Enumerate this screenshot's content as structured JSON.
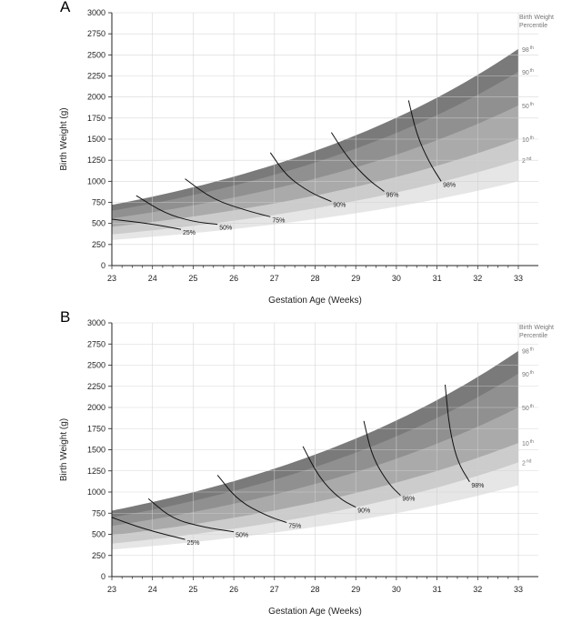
{
  "chart_data": [
    {
      "type": "area",
      "panel_label": "A",
      "xlabel": "Gestation Age (Weeks)",
      "ylabel": "Birth Weight (g)",
      "xlim": [
        23,
        33
      ],
      "ylim": [
        0,
        3000
      ],
      "xticks": [
        "23",
        "24",
        "25",
        "26",
        "27",
        "28",
        "29",
        "30",
        "31",
        "32",
        "33"
      ],
      "yticks": [
        "0",
        "250",
        "500",
        "750",
        "1000",
        "1250",
        "1500",
        "1750",
        "2000",
        "2250",
        "2500",
        "2750",
        "3000"
      ],
      "grid": true,
      "legend_title_1": "Birth Weight",
      "legend_title_2": "Percentile",
      "bands": [
        {
          "name": "98th",
          "num": "98",
          "suf": "th",
          "color": "#7a7a7a",
          "start": 720,
          "end": 2570
        },
        {
          "name": "90th",
          "num": "90",
          "suf": "th",
          "color": "#909090",
          "start": 650,
          "end": 2300
        },
        {
          "name": "50th",
          "num": "50",
          "suf": "th",
          "color": "#aaaaaa",
          "start": 560,
          "end": 1900
        },
        {
          "name": "10th",
          "num": "10",
          "suf": "th",
          "color": "#cccccc",
          "start": 460,
          "end": 1500
        },
        {
          "name": "2nd",
          "num": "2",
          "suf": "nd",
          "color": "#e6e6e6",
          "start": 370,
          "end": 1250
        }
      ],
      "survival_curves": [
        {
          "label": "25%",
          "points": [
            [
              23.0,
              550
            ],
            [
              23.9,
              500
            ],
            [
              24.7,
              430
            ]
          ]
        },
        {
          "label": "50%",
          "points": [
            [
              23.6,
              830
            ],
            [
              24.3,
              620
            ],
            [
              25.0,
              520
            ],
            [
              25.6,
              490
            ]
          ]
        },
        {
          "label": "75%",
          "points": [
            [
              24.8,
              1030
            ],
            [
              25.5,
              780
            ],
            [
              26.4,
              640
            ],
            [
              26.9,
              580
            ]
          ]
        },
        {
          "label": "90%",
          "points": [
            [
              26.9,
              1340
            ],
            [
              27.3,
              1060
            ],
            [
              27.9,
              860
            ],
            [
              28.4,
              760
            ]
          ]
        },
        {
          "label": "96%",
          "points": [
            [
              28.4,
              1580
            ],
            [
              28.8,
              1280
            ],
            [
              29.3,
              1020
            ],
            [
              29.7,
              880
            ]
          ]
        },
        {
          "label": "98%",
          "points": [
            [
              30.3,
              1960
            ],
            [
              30.5,
              1550
            ],
            [
              30.8,
              1230
            ],
            [
              31.1,
              1000
            ]
          ]
        }
      ]
    },
    {
      "type": "area",
      "panel_label": "B",
      "xlabel": "Gestation Age (Weeks)",
      "ylabel": "Birth Weight (g)",
      "xlim": [
        23,
        33
      ],
      "ylim": [
        0,
        3000
      ],
      "xticks": [
        "23",
        "24",
        "25",
        "26",
        "27",
        "28",
        "29",
        "30",
        "31",
        "32",
        "33"
      ],
      "yticks": [
        "0",
        "250",
        "500",
        "750",
        "1000",
        "1250",
        "1500",
        "1750",
        "2000",
        "2250",
        "2500",
        "2750",
        "3000"
      ],
      "grid": true,
      "legend_title_1": "Birth Weight",
      "legend_title_2": "Percentile",
      "bands": [
        {
          "name": "98th",
          "num": "98",
          "suf": "th",
          "color": "#7a7a7a",
          "start": 780,
          "end": 2670
        },
        {
          "name": "90th",
          "num": "90",
          "suf": "th",
          "color": "#909090",
          "start": 700,
          "end": 2400
        },
        {
          "name": "50th",
          "num": "50",
          "suf": "th",
          "color": "#aaaaaa",
          "start": 600,
          "end": 2000
        },
        {
          "name": "10th",
          "num": "10",
          "suf": "th",
          "color": "#cccccc",
          "start": 490,
          "end": 1580
        },
        {
          "name": "2nd",
          "num": "2",
          "suf": "nd",
          "color": "#e6e6e6",
          "start": 390,
          "end": 1350
        }
      ],
      "survival_curves": [
        {
          "label": "25%",
          "points": [
            [
              23.0,
              700
            ],
            [
              23.8,
              560
            ],
            [
              24.8,
              440
            ]
          ]
        },
        {
          "label": "50%",
          "points": [
            [
              23.9,
              920
            ],
            [
              24.5,
              680
            ],
            [
              25.3,
              580
            ],
            [
              26.0,
              530
            ]
          ]
        },
        {
          "label": "75%",
          "points": [
            [
              25.6,
              1200
            ],
            [
              26.1,
              900
            ],
            [
              26.8,
              720
            ],
            [
              27.3,
              640
            ]
          ]
        },
        {
          "label": "90%",
          "points": [
            [
              27.7,
              1540
            ],
            [
              28.1,
              1170
            ],
            [
              28.6,
              920
            ],
            [
              29.0,
              820
            ]
          ]
        },
        {
          "label": "96%",
          "points": [
            [
              29.2,
              1840
            ],
            [
              29.4,
              1420
            ],
            [
              29.8,
              1100
            ],
            [
              30.1,
              960
            ]
          ]
        },
        {
          "label": "98%",
          "points": [
            [
              31.2,
              2270
            ],
            [
              31.3,
              1760
            ],
            [
              31.5,
              1360
            ],
            [
              31.8,
              1120
            ]
          ]
        }
      ]
    }
  ]
}
